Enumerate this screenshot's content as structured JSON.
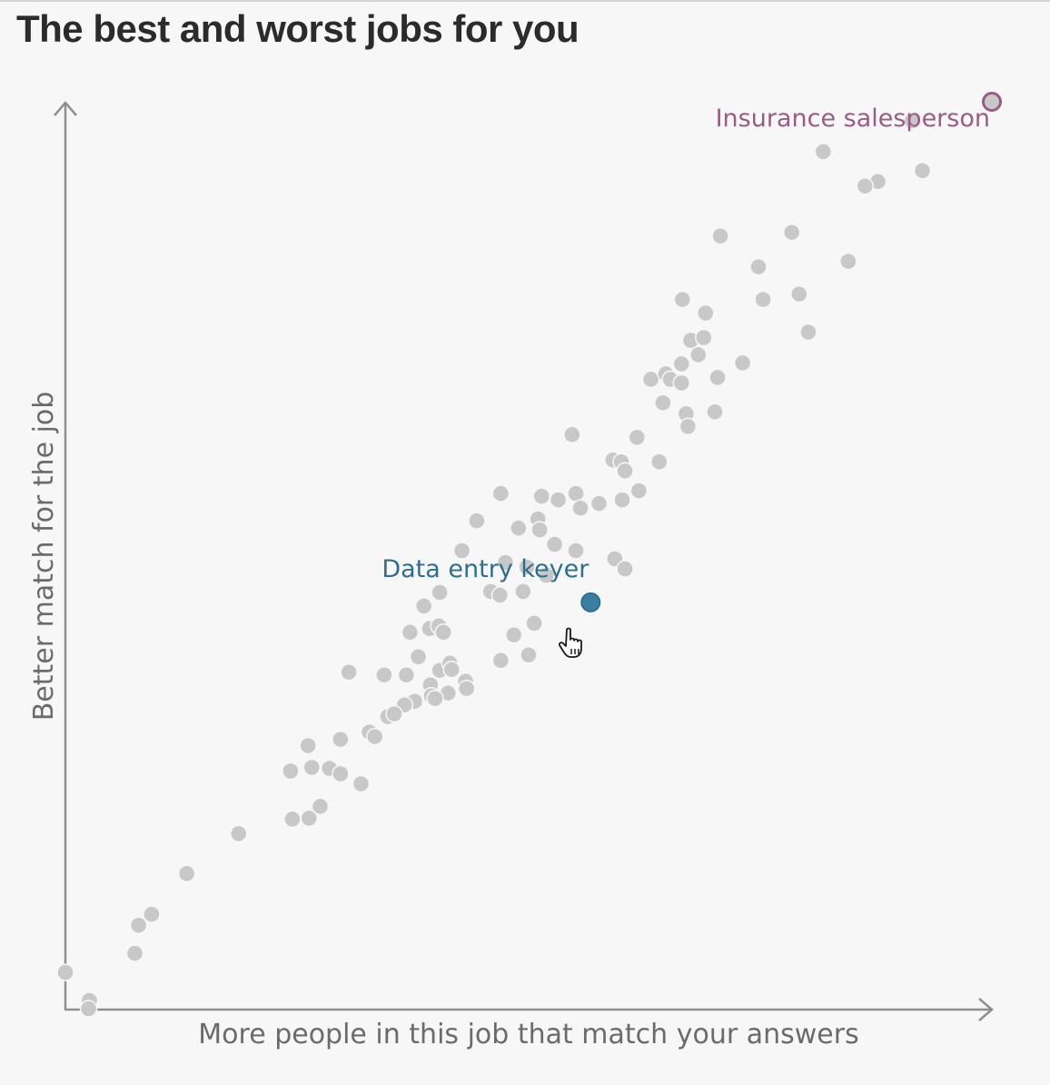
{
  "page": {
    "title": "The best and worst jobs for you"
  },
  "colors": {
    "background": "#f7f7f7",
    "dot": "#c8c8c8",
    "axis": "#8f8f8f",
    "highlight_best": "#9a5c85",
    "highlight_worst": "#2e6f8e",
    "highlight_worst_fill": "#3a7ea1"
  },
  "chart_data": {
    "type": "scatter",
    "title": "The best and worst jobs for you",
    "xlabel": "More people in this job that match your answers",
    "ylabel": "Better match for the job",
    "xlim": [
      0,
      100
    ],
    "ylim": [
      0,
      100
    ],
    "grid": false,
    "ticks": false,
    "highlights": [
      {
        "label": "Insurance salesperson",
        "x": 100.0,
        "y": 100.0,
        "style": "ring",
        "color": "#9a5c85",
        "label_position": "left"
      },
      {
        "label": "Data entry keyer",
        "x": 56.7,
        "y": 44.8,
        "style": "filled",
        "color": "#2e6f8e",
        "label_position": "top-left"
      }
    ],
    "points": [
      [
        91.4,
        97.9
      ],
      [
        81.8,
        94.5
      ],
      [
        92.5,
        92.4
      ],
      [
        87.7,
        91.2
      ],
      [
        86.3,
        90.7
      ],
      [
        78.4,
        85.6
      ],
      [
        70.7,
        85.2
      ],
      [
        84.5,
        82.4
      ],
      [
        74.8,
        81.8
      ],
      [
        79.2,
        78.8
      ],
      [
        75.3,
        78.2
      ],
      [
        66.6,
        78.2
      ],
      [
        69.1,
        76.7
      ],
      [
        80.2,
        74.6
      ],
      [
        67.5,
        73.7
      ],
      [
        68.9,
        74.0
      ],
      [
        68.3,
        72.1
      ],
      [
        73.1,
        71.2
      ],
      [
        66.5,
        71.1
      ],
      [
        63.2,
        69.4
      ],
      [
        64.8,
        70.0
      ],
      [
        65.3,
        69.4
      ],
      [
        66.5,
        69.0
      ],
      [
        70.4,
        69.6
      ],
      [
        64.5,
        66.8
      ],
      [
        67.0,
        65.6
      ],
      [
        70.1,
        65.8
      ],
      [
        67.2,
        64.2
      ],
      [
        54.7,
        63.3
      ],
      [
        61.7,
        63.0
      ],
      [
        59.1,
        60.5
      ],
      [
        60.0,
        60.3
      ],
      [
        60.4,
        59.3
      ],
      [
        64.1,
        60.3
      ],
      [
        47.0,
        56.8
      ],
      [
        51.4,
        56.5
      ],
      [
        53.2,
        56.1
      ],
      [
        55.1,
        56.8
      ],
      [
        55.6,
        55.2
      ],
      [
        57.6,
        55.7
      ],
      [
        60.1,
        56.1
      ],
      [
        61.9,
        57.1
      ],
      [
        44.4,
        53.8
      ],
      [
        48.9,
        53.0
      ],
      [
        51.0,
        54.0
      ],
      [
        51.2,
        52.8
      ],
      [
        52.8,
        51.2
      ],
      [
        55.1,
        50.5
      ],
      [
        42.8,
        50.5
      ],
      [
        47.5,
        49.2
      ],
      [
        49.8,
        48.7
      ],
      [
        51.9,
        47.8
      ],
      [
        59.3,
        49.6
      ],
      [
        60.4,
        48.5
      ],
      [
        40.4,
        45.9
      ],
      [
        38.7,
        44.4
      ],
      [
        45.9,
        46.0
      ],
      [
        46.9,
        45.6
      ],
      [
        49.4,
        46.0
      ],
      [
        50.6,
        42.5
      ],
      [
        37.2,
        41.5
      ],
      [
        39.3,
        41.9
      ],
      [
        40.3,
        42.2
      ],
      [
        40.8,
        41.5
      ],
      [
        48.4,
        41.2
      ],
      [
        38.1,
        38.8
      ],
      [
        47.0,
        38.4
      ],
      [
        50.0,
        39.0
      ],
      [
        30.6,
        37.1
      ],
      [
        34.4,
        36.8
      ],
      [
        36.8,
        36.8
      ],
      [
        40.4,
        37.3
      ],
      [
        41.5,
        38.1
      ],
      [
        41.7,
        37.4
      ],
      [
        43.2,
        36.1
      ],
      [
        39.4,
        35.7
      ],
      [
        43.3,
        35.3
      ],
      [
        41.3,
        34.8
      ],
      [
        39.5,
        34.5
      ],
      [
        39.9,
        34.2
      ],
      [
        37.7,
        33.9
      ],
      [
        36.6,
        33.5
      ],
      [
        34.8,
        32.2
      ],
      [
        35.5,
        32.5
      ],
      [
        32.8,
        30.5
      ],
      [
        33.4,
        30.0
      ],
      [
        29.7,
        29.7
      ],
      [
        26.2,
        29.0
      ],
      [
        24.3,
        26.2
      ],
      [
        26.6,
        26.6
      ],
      [
        28.5,
        26.5
      ],
      [
        29.7,
        25.9
      ],
      [
        31.9,
        24.8
      ],
      [
        27.5,
        22.3
      ],
      [
        24.5,
        20.9
      ],
      [
        26.3,
        21.0
      ],
      [
        18.7,
        19.3
      ],
      [
        13.1,
        14.9
      ],
      [
        9.3,
        10.4
      ],
      [
        7.9,
        9.2
      ],
      [
        7.5,
        6.1
      ],
      [
        0.0,
        4.0
      ],
      [
        2.6,
        0.9
      ],
      [
        2.5,
        0.0
      ]
    ]
  }
}
